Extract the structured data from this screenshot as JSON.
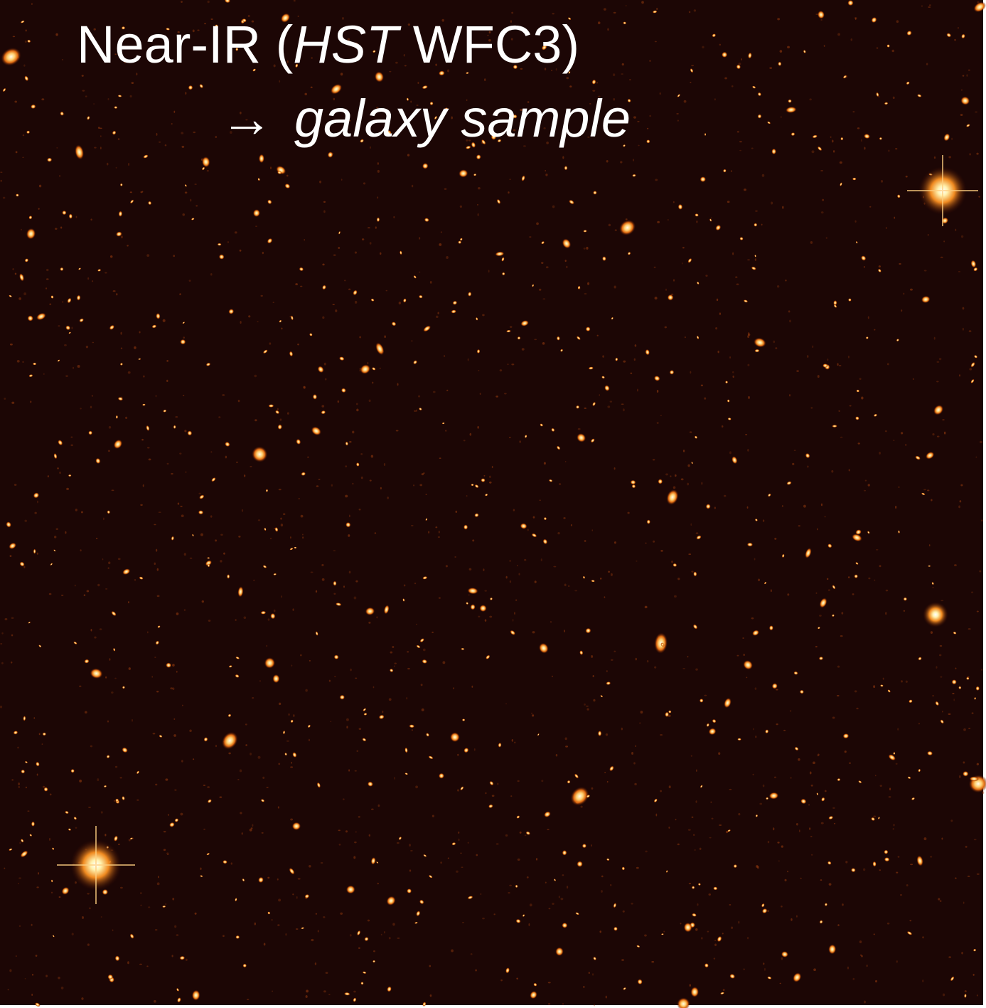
{
  "title": {
    "prefix": "Near-IR (",
    "italic": "HST",
    "suffix": " WFC3)"
  },
  "caption": {
    "arrow": "→",
    "text": "galaxy sample"
  }
}
